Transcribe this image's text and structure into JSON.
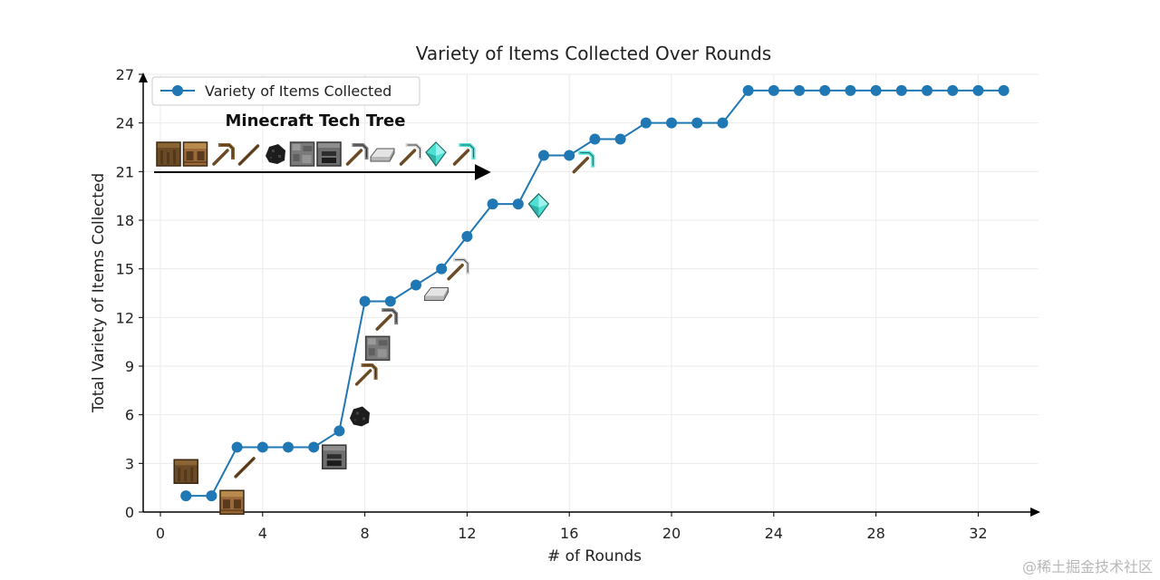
{
  "chart_data": {
    "type": "line",
    "title": "Variety of Items Collected Over Rounds",
    "xlabel": "# of Rounds",
    "ylabel": "Total Variety of Items Collected",
    "xlim": [
      -0.5,
      34.5
    ],
    "ylim": [
      0,
      27
    ],
    "xticks": [
      0,
      4,
      8,
      12,
      16,
      20,
      24,
      28,
      32
    ],
    "yticks": [
      0,
      3,
      6,
      9,
      12,
      15,
      18,
      21,
      24,
      27
    ],
    "grid": true,
    "legend_position": "top-left",
    "series": [
      {
        "name": "Variety of Items Collected",
        "color": "#1f77b4",
        "x": [
          1,
          2,
          3,
          4,
          5,
          6,
          7,
          8,
          9,
          10,
          11,
          12,
          13,
          14,
          15,
          16,
          17,
          18,
          19,
          20,
          21,
          22,
          23,
          24,
          25,
          26,
          27,
          28,
          29,
          30,
          31,
          32,
          33
        ],
        "y": [
          1,
          1,
          4,
          4,
          4,
          4,
          5,
          13,
          13,
          14,
          15,
          17,
          19,
          19,
          22,
          22,
          23,
          23,
          24,
          24,
          24,
          24,
          26,
          26,
          26,
          26,
          26,
          26,
          26,
          26,
          26,
          26,
          26
        ]
      }
    ],
    "annotation": {
      "title": "Minecraft Tech Tree",
      "tech_tree_icons": [
        "log-icon",
        "crafting-table-icon",
        "wooden-pickaxe-icon",
        "stick-icon",
        "coal-icon",
        "cobblestone-icon",
        "furnace-icon",
        "stone-pickaxe-icon",
        "iron-ingot-icon",
        "iron-pickaxe-icon",
        "diamond-icon",
        "diamond-pickaxe-icon"
      ],
      "plot_icons": [
        {
          "icon": "log-icon",
          "x": 1.0,
          "y": 2.5
        },
        {
          "icon": "crafting-table-icon",
          "x": 2.8,
          "y": 0.6
        },
        {
          "icon": "stick-icon",
          "x": 3.3,
          "y": 2.8
        },
        {
          "icon": "furnace-icon",
          "x": 6.8,
          "y": 3.4
        },
        {
          "icon": "coal-icon",
          "x": 7.8,
          "y": 5.9
        },
        {
          "icon": "wooden-pickaxe-icon",
          "x": 8.0,
          "y": 8.5
        },
        {
          "icon": "cobblestone-icon",
          "x": 8.5,
          "y": 10.1
        },
        {
          "icon": "stone-pickaxe-icon",
          "x": 8.8,
          "y": 11.9
        },
        {
          "icon": "iron-ingot-icon",
          "x": 10.8,
          "y": 13.5
        },
        {
          "icon": "iron-pickaxe-icon",
          "x": 11.6,
          "y": 15.0
        },
        {
          "icon": "diamond-icon",
          "x": 14.8,
          "y": 18.9
        },
        {
          "icon": "diamond-pickaxe-icon",
          "x": 16.5,
          "y": 21.6
        }
      ]
    }
  },
  "watermark": "@稀土掘金技术社区"
}
